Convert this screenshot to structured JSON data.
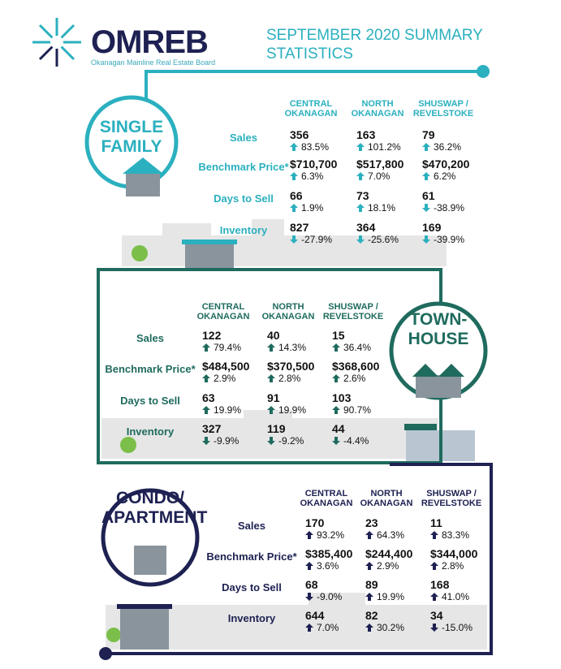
{
  "header": {
    "logo": "OMREB",
    "logo_subtitle": "Okanagan Mainline Real Estate Board",
    "title": "SEPTEMBER 2020 SUMMARY STATISTICS"
  },
  "sections": [
    {
      "label": "SINGLE FAMILY",
      "regions": [
        "CENTRAL OKANAGAN",
        "NORTH OKANAGAN",
        "SHUSWAP / REVELSTOKE"
      ],
      "rows": [
        {
          "metric": "Sales",
          "values": [
            "356",
            "163",
            "79"
          ],
          "changes": [
            "83.5%",
            "101.2%",
            "36.2%"
          ]
        },
        {
          "metric": "Benchmark Price*",
          "values": [
            "$710,700",
            "$517,800",
            "$470,200"
          ],
          "changes": [
            "6.3%",
            "7.0%",
            "6.2%"
          ]
        },
        {
          "metric": "Days to Sell",
          "values": [
            "66",
            "73",
            "61"
          ],
          "changes": [
            "1.9%",
            "18.1%",
            "-38.9%"
          ]
        },
        {
          "metric": "Inventory",
          "values": [
            "827",
            "364",
            "169"
          ],
          "changes": [
            "-27.9%",
            "-25.6%",
            "-39.9%"
          ]
        }
      ]
    },
    {
      "label": "TOWN-HOUSE",
      "regions": [
        "CENTRAL OKANAGAN",
        "NORTH OKANAGAN",
        "SHUSWAP / REVELSTOKE"
      ],
      "rows": [
        {
          "metric": "Sales",
          "values": [
            "122",
            "40",
            "15"
          ],
          "changes": [
            "79.4%",
            "14.3%",
            "36.4%"
          ]
        },
        {
          "metric": "Benchmark Price*",
          "values": [
            "$484,500",
            "$370,500",
            "$368,600"
          ],
          "changes": [
            "2.9%",
            "2.8%",
            "2.6%"
          ]
        },
        {
          "metric": "Days to Sell",
          "values": [
            "63",
            "91",
            "103"
          ],
          "changes": [
            "19.9%",
            "19.9%",
            "90.7%"
          ]
        },
        {
          "metric": "Inventory",
          "values": [
            "327",
            "119",
            "44"
          ],
          "changes": [
            "-9.9%",
            "-9.2%",
            "-4.4%"
          ]
        }
      ]
    },
    {
      "label": "CONDO/ APARTMENT",
      "regions": [
        "CENTRAL OKANAGAN",
        "NORTH OKANAGAN",
        "SHUSWAP / REVELSTOKE"
      ],
      "rows": [
        {
          "metric": "Sales",
          "values": [
            "170",
            "23",
            "11"
          ],
          "changes": [
            "93.2%",
            "64.3%",
            "83.3%"
          ]
        },
        {
          "metric": "Benchmark Price*",
          "values": [
            "$385,400",
            "$244,400",
            "$344,000"
          ],
          "changes": [
            "3.6%",
            "2.9%",
            "2.8%"
          ]
        },
        {
          "metric": "Days to Sell",
          "values": [
            "68",
            "89",
            "168"
          ],
          "changes": [
            "-9.0%",
            "19.9%",
            "41.0%"
          ]
        },
        {
          "metric": "Inventory",
          "values": [
            "644",
            "82",
            "34"
          ],
          "changes": [
            "7.0%",
            "30.2%",
            "-15.0%"
          ]
        }
      ]
    }
  ]
}
